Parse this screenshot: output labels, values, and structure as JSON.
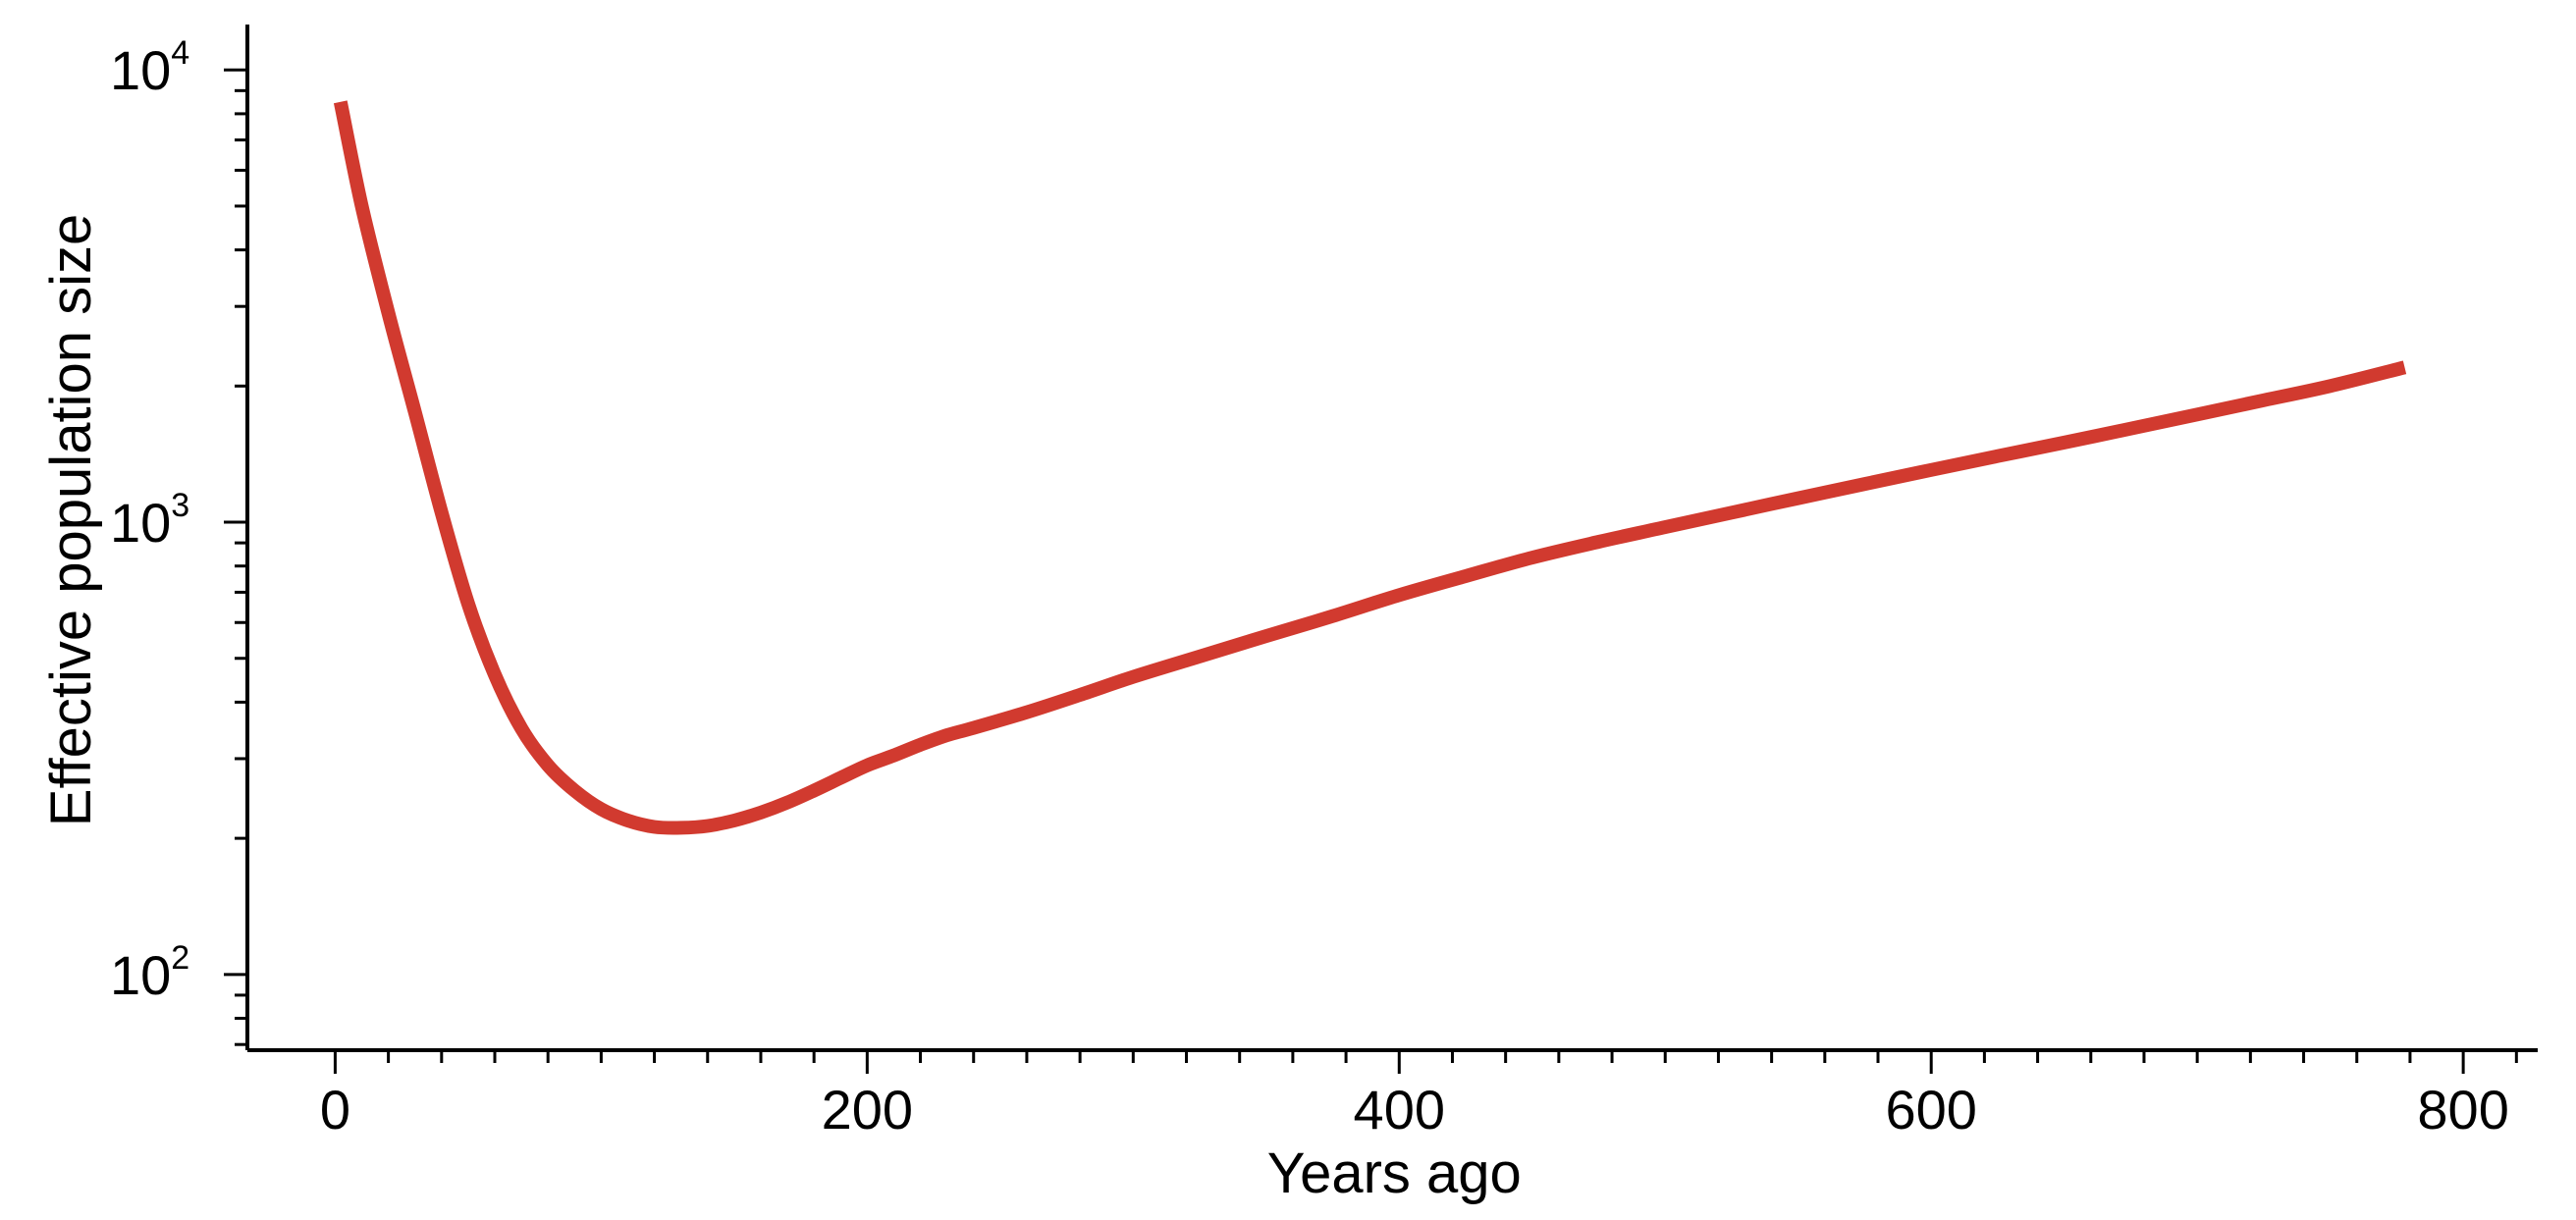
{
  "chart_data": {
    "type": "line",
    "title": "",
    "xlabel": "Years ago",
    "ylabel": "Effective population size",
    "xlim": [
      -33,
      828
    ],
    "ylim": [
      68,
      12600
    ],
    "yscale": "log",
    "grid": false,
    "legend": "none",
    "x_ticks": [
      {
        "value": 0,
        "label": "0"
      },
      {
        "value": 200,
        "label": "200"
      },
      {
        "value": 400,
        "label": "400"
      },
      {
        "value": 600,
        "label": "600"
      },
      {
        "value": 800,
        "label": "800"
      }
    ],
    "x_minor_tick_step": 20,
    "y_ticks": [
      {
        "value": 100,
        "base": "10",
        "exp": "2"
      },
      {
        "value": 1000,
        "base": "10",
        "exp": "3"
      },
      {
        "value": 10000,
        "base": "10",
        "exp": "4"
      }
    ],
    "series": [
      {
        "color": "#d13a2f",
        "x": [
          2,
          10,
          20,
          30,
          40,
          50,
          60,
          70,
          80,
          90,
          100,
          110,
          120,
          130,
          140,
          150,
          160,
          170,
          180,
          190,
          200,
          210,
          220,
          230,
          240,
          260,
          280,
          300,
          325,
          350,
          375,
          400,
          425,
          450,
          475,
          500,
          525,
          550,
          575,
          600,
          625,
          650,
          675,
          700,
          725,
          750,
          778
        ],
        "y": [
          8500,
          5000,
          2900,
          1750,
          1050,
          660,
          460,
          350,
          290,
          255,
          232,
          219,
          212,
          211,
          213,
          219,
          228,
          240,
          255,
          272,
          290,
          305,
          322,
          338,
          351,
          380,
          415,
          455,
          505,
          560,
          620,
          690,
          760,
          835,
          905,
          975,
          1050,
          1130,
          1215,
          1305,
          1400,
          1500,
          1610,
          1730,
          1860,
          2000,
          2200
        ]
      }
    ]
  }
}
